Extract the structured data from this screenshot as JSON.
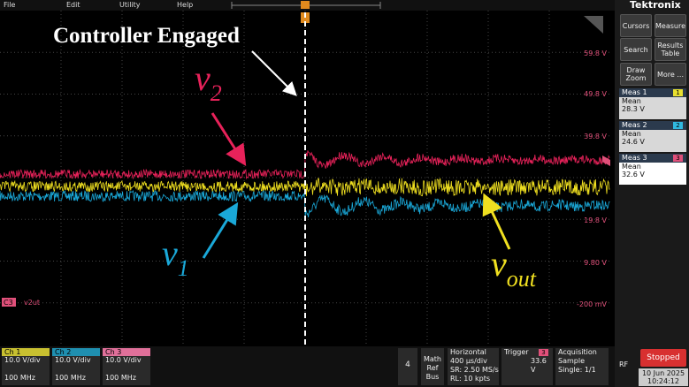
{
  "menu": [
    "File",
    "Edit",
    "Utility",
    "Help"
  ],
  "brand": "Tektronix",
  "annotations": {
    "title": "Controller Engaged",
    "v2": {
      "main": "v",
      "sub": "2"
    },
    "v1": {
      "main": "v",
      "sub": "1"
    },
    "vout": {
      "main": "v",
      "sub": "out"
    }
  },
  "axis_labels": [
    "59.8 V",
    "49.8 V",
    "39.8 V",
    "19.8 V",
    "9.80 V",
    "-200 mV"
  ],
  "trace_label": {
    "channel": "C3",
    "name": "v2ut"
  },
  "side_buttons": [
    "Cursors",
    "Measure",
    "Search",
    "Results Table",
    "Draw Zoom",
    "More ..."
  ],
  "measurements": [
    {
      "label": "Meas 1",
      "badge": "1",
      "stat": "Mean",
      "value": "28.3 V"
    },
    {
      "label": "Meas 2",
      "badge": "2",
      "stat": "Mean",
      "value": "24.6 V"
    },
    {
      "label": "Meas 3",
      "badge": "3",
      "stat": "Mean",
      "value": "32.6 V"
    }
  ],
  "channels": [
    {
      "name": "Ch 1",
      "scale": "10.0 V/div",
      "bandwidth": "100 MHz"
    },
    {
      "name": "Ch 2",
      "scale": "10.0 V/div",
      "bandwidth": "100 MHz"
    },
    {
      "name": "Ch 3",
      "scale": "10.0 V/div",
      "bandwidth": "100 MHz"
    }
  ],
  "add_channel": "4",
  "math_ref_bus": "Math Ref Bus",
  "horizontal": {
    "title": "Horizontal",
    "scale": "400 µs/div",
    "sample_rate": "SR: 2.50 MS/s",
    "record_length": "RL: 10 kpts"
  },
  "trigger": {
    "title": "Trigger",
    "source": "3",
    "level": "33.6 V"
  },
  "acquisition": {
    "title": "Acquisition",
    "mode": "Sample",
    "count": "Single: 1/1"
  },
  "rf": "RF",
  "status": "Stopped",
  "date": "10 Jun 2025",
  "time": "10:24:12"
}
